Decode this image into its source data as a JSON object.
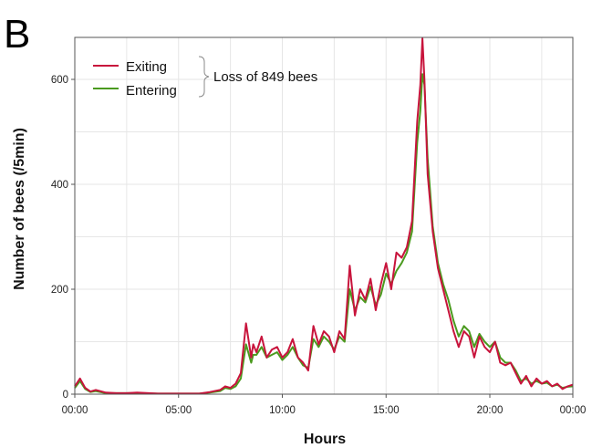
{
  "panel_label": "B",
  "colors": {
    "exiting": "#c8143c",
    "entering": "#4a9a1e",
    "grid": "#e6e6e6",
    "frame": "#555555"
  },
  "chart_data": {
    "type": "line",
    "title": "",
    "panel_label": "B",
    "xlabel": "Hours",
    "ylabel": "Number of bees (/5min)",
    "xlim": [
      0,
      24
    ],
    "ylim": [
      0,
      680
    ],
    "x_ticks": [
      {
        "value": 0,
        "label": "00:00"
      },
      {
        "value": 5,
        "label": "05:00"
      },
      {
        "value": 10,
        "label": "10:00"
      },
      {
        "value": 15,
        "label": "15:00"
      },
      {
        "value": 20,
        "label": "20:00"
      },
      {
        "value": 24,
        "label": "00:00"
      }
    ],
    "y_ticks": [
      {
        "value": 0,
        "label": "0"
      },
      {
        "value": 200,
        "label": "200"
      },
      {
        "value": 400,
        "label": "400"
      },
      {
        "value": 600,
        "label": "600"
      }
    ],
    "grid": true,
    "legend": {
      "position": "top-left"
    },
    "annotation": "Loss of 849 bees",
    "series": [
      {
        "name": "Exiting",
        "color": "#c8143c",
        "x": [
          0,
          0.25,
          0.5,
          0.75,
          1,
          1.5,
          2,
          2.5,
          3,
          4,
          5,
          6,
          6.5,
          7,
          7.25,
          7.5,
          7.75,
          8,
          8.25,
          8.5,
          8.6,
          8.75,
          9,
          9.25,
          9.5,
          9.75,
          10,
          10.25,
          10.5,
          10.75,
          11,
          11.25,
          11.5,
          11.75,
          12,
          12.25,
          12.5,
          12.75,
          13,
          13.25,
          13.5,
          13.75,
          14,
          14.25,
          14.5,
          14.75,
          15,
          15.25,
          15.5,
          15.75,
          16,
          16.25,
          16.5,
          16.65,
          16.75,
          16.85,
          17,
          17.25,
          17.5,
          17.75,
          18,
          18.25,
          18.5,
          18.75,
          19,
          19.25,
          19.5,
          19.75,
          20,
          20.25,
          20.5,
          20.75,
          21,
          21.25,
          21.5,
          21.75,
          22,
          22.25,
          22.5,
          22.75,
          23,
          23.25,
          23.5,
          23.75,
          24
        ],
        "values": [
          15,
          30,
          12,
          5,
          8,
          3,
          2,
          2,
          3,
          1,
          1,
          1,
          4,
          8,
          15,
          12,
          20,
          40,
          135,
          70,
          95,
          80,
          110,
          70,
          85,
          90,
          70,
          80,
          105,
          70,
          60,
          45,
          130,
          95,
          120,
          110,
          80,
          120,
          105,
          245,
          150,
          200,
          180,
          220,
          160,
          210,
          250,
          200,
          270,
          260,
          280,
          330,
          520,
          590,
          678,
          600,
          420,
          310,
          240,
          200,
          160,
          120,
          90,
          120,
          110,
          70,
          110,
          90,
          80,
          100,
          60,
          55,
          60,
          40,
          20,
          35,
          15,
          30,
          20,
          25,
          15,
          20,
          10,
          15,
          18
        ]
      },
      {
        "name": "Entering",
        "color": "#4a9a1e",
        "x": [
          0,
          0.25,
          0.5,
          0.75,
          1,
          1.5,
          2,
          2.5,
          3,
          4,
          5,
          6,
          6.5,
          7,
          7.25,
          7.5,
          7.75,
          8,
          8.25,
          8.5,
          8.6,
          8.75,
          9,
          9.25,
          9.5,
          9.75,
          10,
          10.25,
          10.5,
          10.75,
          11,
          11.25,
          11.5,
          11.75,
          12,
          12.25,
          12.5,
          12.75,
          13,
          13.25,
          13.5,
          13.75,
          14,
          14.25,
          14.5,
          14.75,
          15,
          15.25,
          15.5,
          15.75,
          16,
          16.25,
          16.5,
          16.65,
          16.75,
          16.85,
          17,
          17.25,
          17.5,
          17.75,
          18,
          18.25,
          18.5,
          18.75,
          19,
          19.25,
          19.5,
          19.75,
          20,
          20.25,
          20.5,
          20.75,
          21,
          21.25,
          21.5,
          21.75,
          22,
          22.25,
          22.5,
          22.75,
          23,
          23.25,
          23.5,
          23.75,
          24
        ],
        "values": [
          12,
          25,
          10,
          4,
          6,
          2,
          2,
          2,
          2,
          1,
          1,
          1,
          3,
          6,
          12,
          10,
          15,
          30,
          95,
          60,
          75,
          75,
          90,
          70,
          75,
          80,
          65,
          75,
          90,
          70,
          55,
          50,
          105,
          90,
          110,
          100,
          85,
          110,
          100,
          200,
          160,
          185,
          175,
          205,
          170,
          190,
          230,
          210,
          235,
          250,
          270,
          310,
          480,
          540,
          610,
          590,
          450,
          320,
          250,
          210,
          180,
          140,
          110,
          130,
          120,
          90,
          115,
          100,
          90,
          100,
          70,
          60,
          60,
          45,
          25,
          30,
          20,
          25,
          20,
          22,
          15,
          18,
          12,
          14,
          15
        ]
      }
    ]
  }
}
